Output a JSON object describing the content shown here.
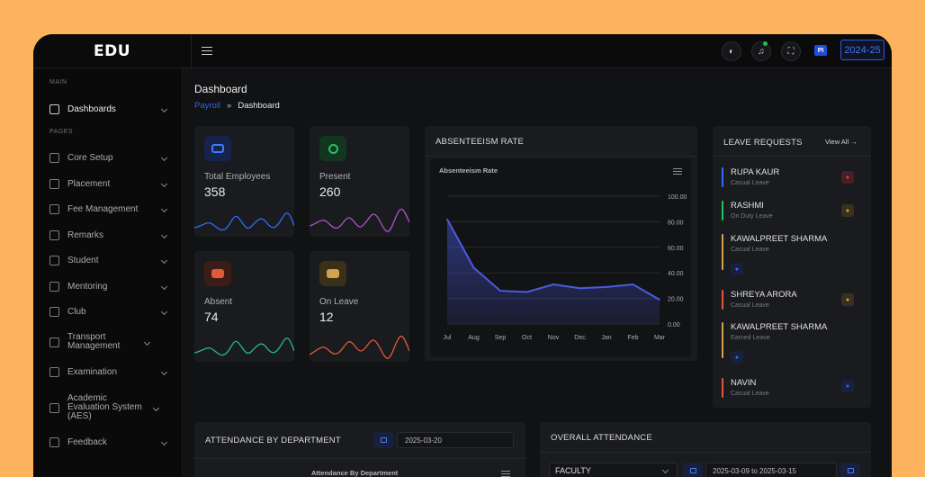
{
  "app": {
    "logo": "EDU",
    "year": "2024-25",
    "avatar_initials": "PI"
  },
  "topbar_icons": [
    "theme-toggle-icon",
    "bell-icon",
    "fullscreen-icon"
  ],
  "sidebar": {
    "heading_main": "MAIN",
    "heading_pages": "PAGES",
    "items": [
      {
        "label": "Dashboards",
        "icon": "home-icon",
        "active": true
      },
      {
        "label": "Core Setup",
        "icon": "layers-icon"
      },
      {
        "label": "Placement",
        "icon": "briefcase-icon"
      },
      {
        "label": "Fee Management",
        "icon": "wallet-icon"
      },
      {
        "label": "Remarks",
        "icon": "message-icon"
      },
      {
        "label": "Student",
        "icon": "student-icon"
      },
      {
        "label": "Mentoring",
        "icon": "mentoring-icon"
      },
      {
        "label": "Club",
        "icon": "club-icon"
      },
      {
        "label": "Transport Management",
        "icon": "bus-icon"
      },
      {
        "label": "Examination",
        "icon": "exam-icon"
      },
      {
        "label": "Academic Evaluation System (AES)",
        "icon": "evaluation-icon"
      },
      {
        "label": "Feedback",
        "icon": "feedback-icon"
      }
    ]
  },
  "page": {
    "title": "Dashboard",
    "breadcrumb": [
      "Payroll",
      "Dashboard"
    ],
    "breadcrumb_sep": "»"
  },
  "stats": [
    {
      "label": "Total Employees",
      "value": "358",
      "icon": "users-icon",
      "color": "#2f6bff"
    },
    {
      "label": "Present",
      "value": "260",
      "icon": "check-user-icon",
      "color": "#22c55e"
    },
    {
      "label": "Absent",
      "value": "74",
      "icon": "user-x-icon",
      "color": "#e05a3a"
    },
    {
      "label": "On Leave",
      "value": "12",
      "icon": "user-clock-icon",
      "color": "#d4a24a"
    }
  ],
  "absenteeism": {
    "header": "ABSENTEEISM RATE",
    "chart_title": "Absenteeism Rate"
  },
  "chart_data": {
    "type": "area",
    "title": "Absenteeism Rate",
    "categories": [
      "Jul",
      "Aug",
      "Sep",
      "Oct",
      "Nov",
      "Dec",
      "Jan",
      "Feb",
      "Mar"
    ],
    "series": [
      {
        "values": [
          82,
          44,
          26,
          25,
          31,
          28,
          29,
          31,
          19
        ]
      }
    ],
    "ylim": [
      0,
      100
    ],
    "yticks": [
      "100.00",
      "80.00",
      "60.00",
      "40.00",
      "20.00",
      "0.00"
    ],
    "y_axis_side": "right",
    "grid": true,
    "color": "#4453c8"
  },
  "leave_requests": {
    "header": "LEAVE REQUESTS",
    "view_all": "View All →",
    "items": [
      {
        "name": "RUPA KAUR",
        "type": "Casual Leave",
        "color": "#2f6bff",
        "action": "reject-icon",
        "action_color": "#e04444"
      },
      {
        "name": "RASHMI",
        "type": "On Duty Leave",
        "color": "#22c55e",
        "action": "pending-icon",
        "action_color": "#d4a24a"
      },
      {
        "name": "KAWALPREET SHARMA",
        "type": "Casual Leave",
        "color": "#d4a24a",
        "action": "info-icon",
        "action_color": "#2f6bff"
      },
      {
        "name": "SHREYA ARORA",
        "type": "Casual Leave",
        "color": "#e05a3a",
        "action": "pending-icon",
        "action_color": "#d4a24a"
      },
      {
        "name": "KAWALPREET SHARMA",
        "type": "Earned Leave",
        "color": "#d4a24a",
        "action": "info-icon",
        "action_color": "#2f6bff"
      },
      {
        "name": "NAVIN",
        "type": "Casual Leave",
        "color": "#e05a3a",
        "action": "info-icon",
        "action_color": "#2f6bff"
      }
    ]
  },
  "attendance_department": {
    "header": "ATTENDANCE BY DEPARTMENT",
    "date": "2025-03-20",
    "chart_title": "Attendance By Department"
  },
  "overall_attendance": {
    "header": "OVERALL ATTENDANCE",
    "filter": "FACULTY",
    "date_range": "2025-03-09 to 2025-03-15"
  }
}
